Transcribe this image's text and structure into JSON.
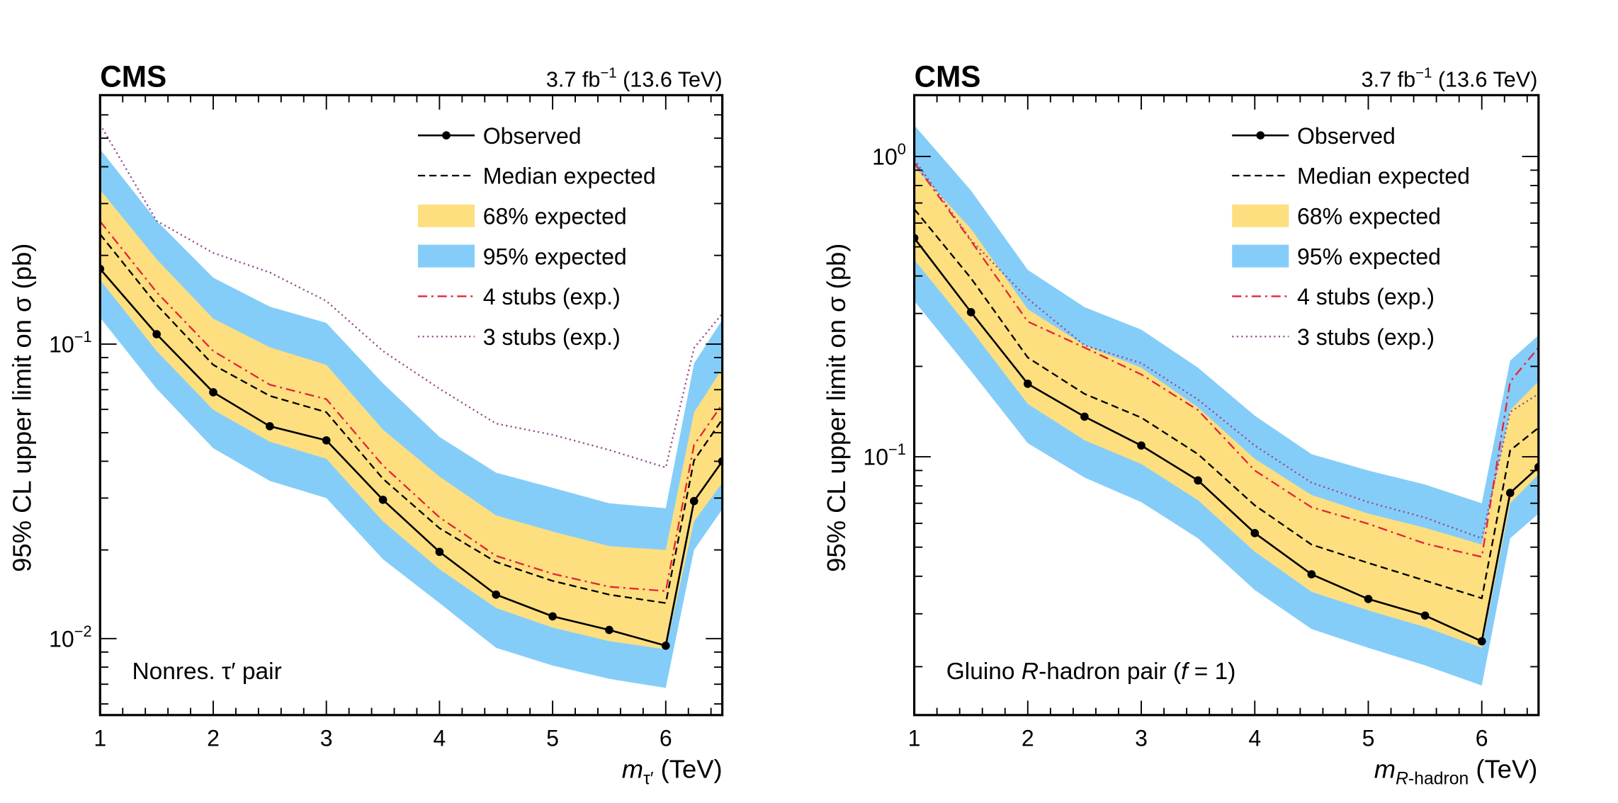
{
  "colors": {
    "band95": "#85cdf9",
    "band68": "#fddf80",
    "observed": "#000000",
    "expected": "#000000",
    "stubs4": "#e42536",
    "stubs3": "#964a8b"
  },
  "chart_data": [
    {
      "type": "line",
      "experiment": "CMS",
      "lumi": "3.7 fb",
      "lumi_exp": "−1",
      "energy": "(13.6 TeV)",
      "ylabel": "95% CL upper limit on σ (pb)",
      "xlabel": {
        "var": "m",
        "sub": "τ′",
        "unit": "(TeV)"
      },
      "annotation": {
        "text": "Nonres. τ′ pair"
      },
      "xlim": [
        1,
        6.5
      ],
      "ylim": [
        0.0055,
        0.7
      ],
      "yscale": "log",
      "grid": false,
      "legend_position": "top-right",
      "x_ticks": [
        "1",
        "2",
        "3",
        "4",
        "5",
        "6"
      ],
      "y_ticks": [
        {
          "value": 0.1,
          "base": "10",
          "exp": "−1"
        },
        {
          "value": 0.01,
          "base": "10",
          "exp": "−2"
        }
      ],
      "x": [
        1,
        1.5,
        2,
        2.5,
        3,
        3.5,
        4,
        4.5,
        5,
        5.5,
        6,
        6.25,
        6.5
      ],
      "series": [
        {
          "name": "95% expected",
          "kind": "band",
          "upper": [
            0.459,
            0.262,
            0.168,
            0.134,
            0.118,
            0.0736,
            0.0484,
            0.0366,
            0.0325,
            0.0288,
            0.0277,
            0.0859,
            0.121
          ],
          "lower": [
            0.123,
            0.0705,
            0.0443,
            0.0343,
            0.03,
            0.0186,
            0.0132,
            0.0093,
            0.0081,
            0.0073,
            0.0068,
            0.02,
            0.0275
          ]
        },
        {
          "name": "68% expected",
          "kind": "band",
          "upper": [
            0.334,
            0.194,
            0.122,
            0.0975,
            0.085,
            0.0512,
            0.0355,
            0.0262,
            0.0231,
            0.0206,
            0.02,
            0.0586,
            0.0826
          ],
          "lower": [
            0.165,
            0.0947,
            0.0598,
            0.0466,
            0.0408,
            0.025,
            0.0172,
            0.0127,
            0.0109,
            0.0098,
            0.0092,
            0.025,
            0.0338
          ]
        },
        {
          "name": "3 stubs (exp.)",
          "kind": "dotted",
          "values": [
            0.557,
            0.262,
            0.204,
            0.175,
            0.14,
            0.0947,
            0.0705,
            0.0537,
            0.0492,
            0.0437,
            0.0381,
            0.097,
            0.127
          ]
        },
        {
          "name": "4 stubs (exp.)",
          "kind": "dashdot",
          "values": [
            0.261,
            0.15,
            0.0947,
            0.0728,
            0.065,
            0.0387,
            0.0258,
            0.0191,
            0.0166,
            0.015,
            0.0145,
            0.0454,
            0.0625
          ]
        },
        {
          "name": "Median expected",
          "kind": "dashed",
          "values": [
            0.236,
            0.136,
            0.085,
            0.0667,
            0.0587,
            0.0349,
            0.0237,
            0.0182,
            0.0157,
            0.0141,
            0.0132,
            0.0403,
            0.0555
          ]
        },
        {
          "name": "Observed",
          "kind": "observed",
          "values": [
            0.18,
            0.108,
            0.0686,
            0.0526,
            0.0471,
            0.0296,
            0.0197,
            0.0141,
            0.0119,
            0.0107,
            0.00946,
            0.0293,
            0.04
          ]
        }
      ],
      "legend_order": [
        "Observed",
        "Median expected",
        "68% expected",
        "95% expected",
        "4 stubs (exp.)",
        "3 stubs (exp.)"
      ]
    },
    {
      "type": "line",
      "experiment": "CMS",
      "lumi": "3.7 fb",
      "lumi_exp": "−1",
      "energy": "(13.6 TeV)",
      "ylabel": "95% CL upper limit on σ (pb)",
      "xlabel": {
        "var": "m",
        "sub": "R",
        "sub_rest": "-hadron",
        "unit": "(TeV)"
      },
      "annotation": {
        "pre": "Gluino ",
        "italic": "R",
        "mid": "-hadron pair (",
        "italic2": "f",
        "post": " = 1)"
      },
      "xlim": [
        1,
        6.5
      ],
      "ylim": [
        0.0138,
        1.6
      ],
      "yscale": "log",
      "grid": false,
      "legend_position": "top-right",
      "x_ticks": [
        "1",
        "2",
        "3",
        "4",
        "5",
        "6"
      ],
      "y_ticks": [
        {
          "value": 1,
          "base": "10",
          "exp": "0"
        },
        {
          "value": 0.1,
          "base": "10",
          "exp": "−1"
        }
      ],
      "x": [
        1,
        1.5,
        2,
        2.5,
        3,
        3.5,
        4,
        4.5,
        5,
        5.5,
        6,
        6.25,
        6.5
      ],
      "series": [
        {
          "name": "95% expected",
          "kind": "band",
          "upper": [
            1.27,
            0.77,
            0.419,
            0.315,
            0.265,
            0.198,
            0.137,
            0.102,
            0.09,
            0.0808,
            0.07,
            0.209,
            0.254
          ],
          "lower": [
            0.33,
            0.193,
            0.111,
            0.0853,
            0.0706,
            0.0535,
            0.036,
            0.0267,
            0.0231,
            0.0202,
            0.0173,
            0.0535,
            0.0647
          ]
        },
        {
          "name": "68% expected",
          "kind": "band",
          "upper": [
            0.924,
            0.574,
            0.31,
            0.235,
            0.198,
            0.146,
            0.0984,
            0.0746,
            0.0647,
            0.058,
            0.051,
            0.143,
            0.178
          ],
          "lower": [
            0.453,
            0.265,
            0.15,
            0.1135,
            0.0946,
            0.0717,
            0.0483,
            0.0355,
            0.0308,
            0.0271,
            0.0231,
            0.07,
            0.0874
          ]
        },
        {
          "name": "3 stubs (exp.)",
          "kind": "dotted",
          "values": [
            0.977,
            0.527,
            0.336,
            0.235,
            0.205,
            0.155,
            0.109,
            0.082,
            0.0706,
            0.0627,
            0.0535,
            0.141,
            0.162
          ]
        },
        {
          "name": "4 stubs (exp.)",
          "kind": "dashdot",
          "values": [
            0.953,
            0.523,
            0.282,
            0.231,
            0.188,
            0.143,
            0.09,
            0.0679,
            0.0598,
            0.0514,
            0.0464,
            0.178,
            0.231
          ]
        },
        {
          "name": "Median expected",
          "kind": "dashed",
          "values": [
            0.668,
            0.393,
            0.214,
            0.162,
            0.135,
            0.102,
            0.0689,
            0.051,
            0.0443,
            0.0387,
            0.0338,
            0.105,
            0.125
          ]
        },
        {
          "name": "Observed",
          "kind": "observed",
          "values": [
            0.535,
            0.303,
            0.175,
            0.136,
            0.109,
            0.0834,
            0.0557,
            0.0406,
            0.0336,
            0.0296,
            0.0243,
            0.0758,
            0.0924
          ]
        }
      ],
      "legend_order": [
        "Observed",
        "Median expected",
        "68% expected",
        "95% expected",
        "4 stubs (exp.)",
        "3 stubs (exp.)"
      ]
    }
  ]
}
